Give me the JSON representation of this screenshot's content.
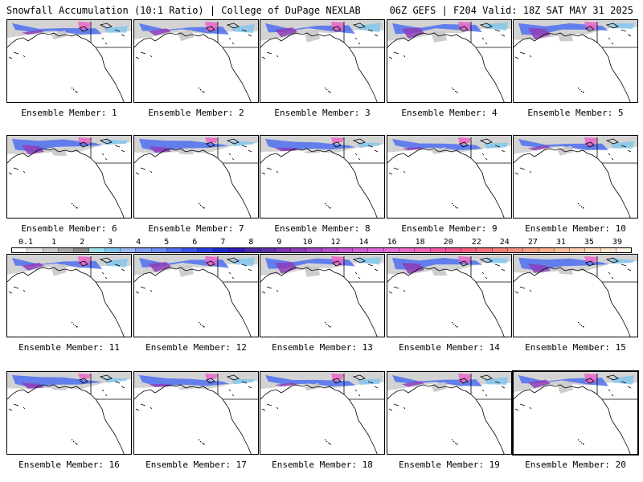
{
  "header": {
    "title_left": "Snowfall Accumulation (10:1 Ratio) | College of DuPage NEXLAB",
    "title_right": "06Z GEFS | F204 Valid: 18Z SAT MAY 31 2025"
  },
  "panels": [
    {
      "label": "Ensemble Member: 1"
    },
    {
      "label": "Ensemble Member: 2"
    },
    {
      "label": "Ensemble Member: 3"
    },
    {
      "label": "Ensemble Member: 4"
    },
    {
      "label": "Ensemble Member: 5"
    },
    {
      "label": "Ensemble Member: 6"
    },
    {
      "label": "Ensemble Member: 7"
    },
    {
      "label": "Ensemble Member: 8"
    },
    {
      "label": "Ensemble Member: 9"
    },
    {
      "label": "Ensemble Member: 10"
    },
    {
      "label": "Ensemble Member: 11"
    },
    {
      "label": "Ensemble Member: 12"
    },
    {
      "label": "Ensemble Member: 13"
    },
    {
      "label": "Ensemble Member: 14"
    },
    {
      "label": "Ensemble Member: 15"
    },
    {
      "label": "Ensemble Member: 16"
    },
    {
      "label": "Ensemble Member: 17"
    },
    {
      "label": "Ensemble Member: 18"
    },
    {
      "label": "Ensemble Member: 19"
    },
    {
      "label": "Ensemble Member: 20",
      "selected": true
    }
  ],
  "legend": {
    "labels": [
      "0.1",
      "1",
      "2",
      "3",
      "4",
      "5",
      "6",
      "7",
      "8",
      "9",
      "10",
      "12",
      "14",
      "16",
      "18",
      "20",
      "22",
      "24",
      "27",
      "31",
      "35",
      "39"
    ],
    "colors": [
      "#ffffff",
      "#e2e2e2",
      "#c8c8c8",
      "#a8a8a8",
      "#8a8a8a",
      "#a0e0ea",
      "#7fc6ee",
      "#9bb8f0",
      "#7e9cf2",
      "#6a8cf0",
      "#4d6ff0",
      "#3a55e8",
      "#2a3bdc",
      "#1a2ad0",
      "#2e1ab8",
      "#4a2aa8",
      "#5e2ea8",
      "#7a35b0",
      "#8e3db8",
      "#a245c0",
      "#b44ec8",
      "#c656d0",
      "#d25ed6",
      "#dc66d8",
      "#e46ed6",
      "#ea6ac8",
      "#ee64b8",
      "#f05aa4",
      "#f05890",
      "#f0607e",
      "#f0707a",
      "#f28078",
      "#f49080",
      "#f6a088",
      "#f8b090",
      "#f9c0a0",
      "#fad0b0",
      "#fbdcc0",
      "#fce8d0",
      "#fff4e4"
    ]
  },
  "map_colors": {
    "coast": "#000000",
    "snow_light": "#c8c8c8",
    "snow_blue": "#4d6ff0",
    "snow_cyan": "#7fc6ee",
    "snow_purple": "#8e3db8",
    "snow_pink": "#ea6ac8"
  }
}
